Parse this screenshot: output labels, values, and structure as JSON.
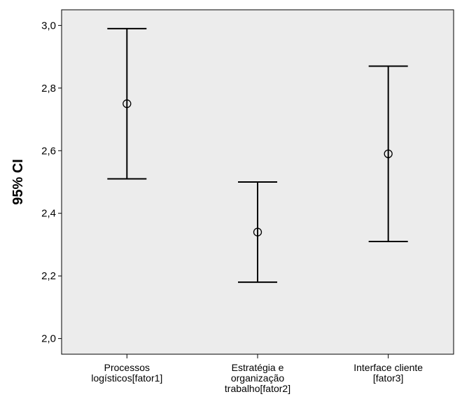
{
  "chart_data": {
    "type": "errorbar",
    "ylabel": "95% CI",
    "xlabel": "",
    "ylim": [
      1.95,
      3.05
    ],
    "yticks": [
      2.0,
      2.2,
      2.4,
      2.6,
      2.8,
      3.0
    ],
    "ytick_labels": [
      "2,0",
      "2,2",
      "2,4",
      "2,6",
      "2,8",
      "3,0"
    ],
    "grid": false,
    "categories": [
      [
        "Processos",
        "logísticos[fator1]"
      ],
      [
        "Estratégia e",
        "organização",
        "trabalho[fator2]"
      ],
      [
        "Interface cliente",
        "[fator3]"
      ]
    ],
    "points": [
      {
        "mean": 2.75,
        "lower": 2.51,
        "upper": 2.99
      },
      {
        "mean": 2.34,
        "lower": 2.18,
        "upper": 2.5
      },
      {
        "mean": 2.59,
        "lower": 2.31,
        "upper": 2.87
      }
    ],
    "colors": {
      "plot_background": "#ececec",
      "marks": "#000000"
    }
  }
}
